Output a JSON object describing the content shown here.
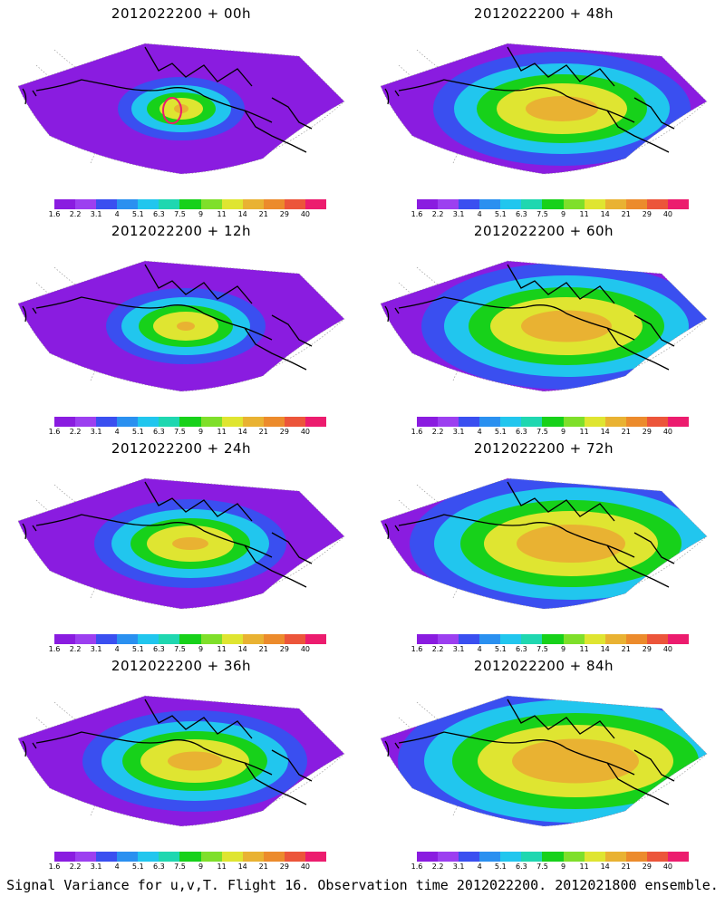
{
  "colors": {
    "scale": [
      "#8a1ce0",
      "#9c3ff0",
      "#3a4ff0",
      "#2a90f0",
      "#21c6ee",
      "#1fd7b0",
      "#17d11a",
      "#7fdf2a",
      "#dfe531",
      "#e9b232",
      "#ec8b2c",
      "#ec553a",
      "#ec1c6e"
    ],
    "map_outer": "#ffffff",
    "coast": "#000000",
    "grid": "#999999"
  },
  "colorbar": {
    "ticks": [
      "1.6",
      "2.2",
      "3.1",
      "4",
      "5.1",
      "6.3",
      "7.5",
      "9",
      "11",
      "14",
      "21",
      "29",
      "40"
    ]
  },
  "panels": [
    {
      "title": "2012022200  + 00h",
      "level": 0
    },
    {
      "title": "2012022200  + 48h",
      "level": 4
    },
    {
      "title": "2012022200  + 12h",
      "level": 1
    },
    {
      "title": "2012022200  + 60h",
      "level": 5
    },
    {
      "title": "2012022200  + 24h",
      "level": 2
    },
    {
      "title": "2012022200  + 72h",
      "level": 6
    },
    {
      "title": "2012022200  + 36h",
      "level": 3
    },
    {
      "title": "2012022200  + 84h",
      "level": 7
    }
  ],
  "caption": "Signal Variance for u,v,T. Flight 16. Observation time 2012022200. 2012021800 ensemble."
}
